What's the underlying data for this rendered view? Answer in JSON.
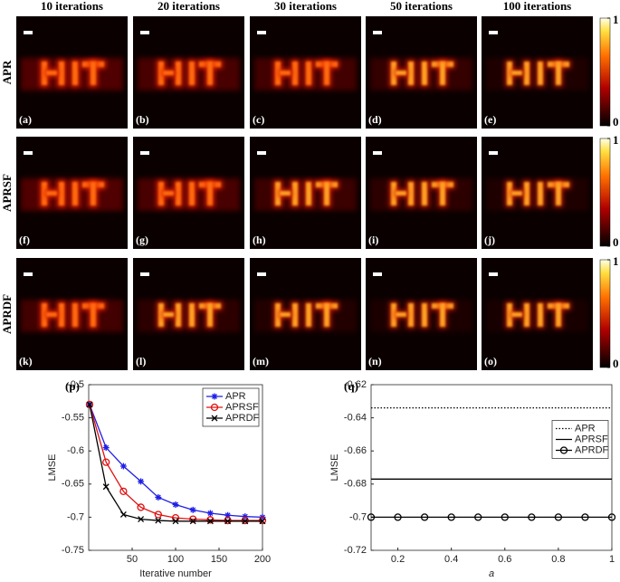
{
  "figure": {
    "columns": [
      "10 iterations",
      "20 iterations",
      "30 iterations",
      "50 iterations",
      "100 iterations"
    ],
    "rows": [
      "APR",
      "APRSF",
      "APRDF"
    ],
    "panel_labels": [
      "(a)",
      "(b)",
      "(c)",
      "(d)",
      "(e)",
      "(f)",
      "(g)",
      "(h)",
      "(i)",
      "(j)",
      "(k)",
      "(l)",
      "(m)",
      "(n)",
      "(o)"
    ],
    "colorbar": {
      "lim": [
        0,
        1
      ],
      "ticks": [
        0,
        1
      ]
    }
  },
  "chart_data": [
    {
      "type": "line",
      "label": "(p)",
      "xlabel": "Iterative number",
      "ylabel": "LMSE",
      "x": [
        1,
        20,
        40,
        60,
        80,
        100,
        120,
        140,
        160,
        180,
        200
      ],
      "xlim": [
        0,
        200
      ],
      "xticks": [
        50,
        100,
        150,
        200
      ],
      "ylim": [
        -0.75,
        -0.5
      ],
      "yticks": [
        -0.75,
        -0.7,
        -0.65,
        -0.6,
        -0.55,
        -0.5
      ],
      "legend": "upper right",
      "series": [
        {
          "name": "APR",
          "color": "#1f1fe6",
          "marker": "star",
          "dash": "solid",
          "values": [
            -0.53,
            -0.595,
            -0.623,
            -0.646,
            -0.67,
            -0.681,
            -0.689,
            -0.694,
            -0.697,
            -0.699,
            -0.7
          ]
        },
        {
          "name": "APRSF",
          "color": "#e01010",
          "marker": "circle",
          "dash": "solid",
          "values": [
            -0.53,
            -0.617,
            -0.661,
            -0.685,
            -0.696,
            -0.701,
            -0.703,
            -0.704,
            -0.705,
            -0.705,
            -0.705
          ]
        },
        {
          "name": "APRDF",
          "color": "#000000",
          "marker": "cross",
          "dash": "solid",
          "values": [
            -0.53,
            -0.654,
            -0.696,
            -0.703,
            -0.705,
            -0.706,
            -0.706,
            -0.706,
            -0.706,
            -0.706,
            -0.706
          ]
        }
      ]
    },
    {
      "type": "line",
      "label": "(q)",
      "xlabel": "a",
      "ylabel": "LMSE",
      "x": [
        0.1,
        0.2,
        0.3,
        0.4,
        0.5,
        0.6,
        0.7,
        0.8,
        0.9,
        1
      ],
      "xlim": [
        0.1,
        1
      ],
      "xticks": [
        0.2,
        0.4,
        0.6,
        0.8,
        1
      ],
      "ylim": [
        -0.72,
        -0.62
      ],
      "yticks": [
        -0.72,
        -0.7,
        -0.68,
        -0.66,
        -0.64,
        -0.62
      ],
      "legend": "center right",
      "series": [
        {
          "name": "APR",
          "color": "#000000",
          "marker": null,
          "dash": "dotted",
          "values": [
            -0.634,
            -0.634,
            -0.634,
            -0.634,
            -0.634,
            -0.634,
            -0.634,
            -0.634,
            -0.634,
            -0.634
          ]
        },
        {
          "name": "APRSF",
          "color": "#000000",
          "marker": null,
          "dash": "solid",
          "values": [
            -0.677,
            -0.677,
            -0.677,
            -0.677,
            -0.677,
            -0.677,
            -0.677,
            -0.677,
            -0.677,
            -0.677
          ]
        },
        {
          "name": "APRDF",
          "color": "#000000",
          "marker": "circle",
          "dash": "solid",
          "values": [
            -0.7,
            -0.7,
            -0.7,
            -0.7,
            -0.7,
            -0.7,
            -0.7,
            -0.7,
            -0.7,
            -0.7
          ]
        }
      ]
    }
  ]
}
